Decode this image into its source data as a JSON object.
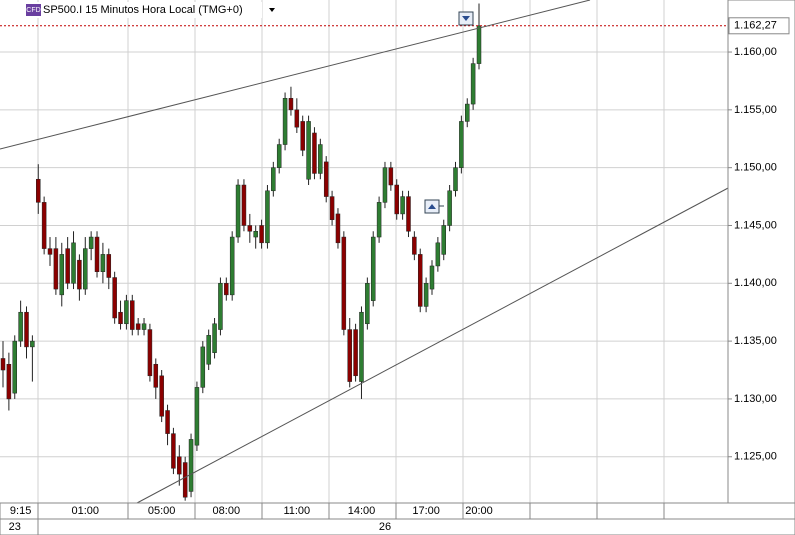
{
  "chart_data": {
    "type": "candlestick",
    "badge": "CFD",
    "title": "SP500.I 15 Minutos Hora Local (TMG+0)",
    "categories": [
      null,
      null,
      null,
      "9:15",
      null,
      null,
      null,
      null,
      null,
      null,
      null,
      null,
      null,
      null,
      "01:00",
      null,
      null,
      null,
      null,
      null,
      null,
      null,
      null,
      null,
      null,
      null,
      null,
      "05:00",
      null,
      null,
      null,
      null,
      null,
      null,
      null,
      null,
      null,
      null,
      "08:00",
      null,
      null,
      null,
      null,
      null,
      null,
      null,
      null,
      null,
      null,
      null,
      "11:00",
      null,
      null,
      null,
      null,
      null,
      null,
      null,
      null,
      null,
      null,
      "14:00",
      null,
      null,
      null,
      null,
      null,
      null,
      null,
      null,
      null,
      null,
      "17:00",
      null,
      null,
      null,
      null,
      null,
      null,
      null,
      null,
      "20:00"
    ],
    "dates": [
      null,
      null,
      "23",
      null,
      null,
      null,
      null,
      null,
      null,
      null,
      null,
      null,
      null,
      null,
      null,
      null,
      null,
      null,
      null,
      null,
      null,
      null,
      null,
      null,
      null,
      null,
      null,
      null,
      null,
      null,
      null,
      null,
      null,
      null,
      null,
      null,
      null,
      null,
      null,
      null,
      null,
      null,
      null,
      null,
      null,
      null,
      null,
      null,
      null,
      null,
      null,
      null,
      null,
      null,
      null,
      null,
      null,
      null,
      null,
      null,
      null,
      null,
      null,
      null,
      null,
      "26",
      null,
      null,
      null,
      null,
      null,
      null,
      null,
      null,
      null,
      null,
      null,
      null,
      null,
      null,
      null,
      null
    ],
    "open": [
      1133.5,
      1133,
      1130.5,
      1135,
      1137.5,
      1134.5,
      1149,
      1147,
      1143,
      1143,
      1139,
      1143,
      1140,
      1142,
      1139.5,
      1143,
      1144,
      1141,
      1142.5,
      1140.5,
      1137.5,
      1136.5,
      1138.5,
      1136.5,
      1136,
      1136,
      1133,
      1132,
      1129,
      1127,
      1125,
      1124.5,
      1122,
      1126,
      1131,
      1133,
      1134,
      1136,
      1140,
      1139,
      1144,
      1148.5,
      1145,
      1144,
      1145,
      1143.5,
      1148,
      1150,
      1152,
      1156,
      1155,
      1154,
      1149,
      1153,
      1149.5,
      1150.5,
      1147.5,
      1146,
      1144,
      1136,
      1136,
      1131.5,
      1136.5,
      1138.5,
      1144,
      1147,
      1150,
      1148.5,
      1146,
      1147.5,
      1144,
      1142.5,
      1138,
      1139.5,
      1141.5,
      1142.5,
      1145,
      1148,
      1150,
      1154,
      1155.5,
      1159
    ],
    "high": [
      1135,
      1134,
      1135.5,
      1138.5,
      1138,
      1135.5,
      1150.3,
      1147.5,
      1144,
      1144,
      1143.5,
      1144,
      1144.5,
      1142.5,
      1144,
      1144.5,
      1144.5,
      1143.5,
      1143,
      1141,
      1138.5,
      1139,
      1139,
      1137,
      1137,
      1136.5,
      1133.5,
      1132.5,
      1129.5,
      1127.5,
      1126,
      1125,
      1127,
      1131.5,
      1135,
      1136,
      1137,
      1140.5,
      1140.5,
      1144.5,
      1149,
      1149,
      1146,
      1145,
      1145.5,
      1148.5,
      1150.5,
      1152.5,
      1156.5,
      1157,
      1156,
      1154.5,
      1154.5,
      1153.5,
      1152.5,
      1151,
      1148,
      1146.5,
      1144.5,
      1137,
      1136.5,
      1138,
      1140.5,
      1144.5,
      1147.5,
      1150.5,
      1150.5,
      1149,
      1148,
      1148,
      1144.5,
      1143,
      1140.5,
      1142,
      1144,
      1145.5,
      1148.5,
      1150.5,
      1154.5,
      1156,
      1159.5,
      1164.2
    ],
    "low": [
      1131,
      1129,
      1130,
      1134.5,
      1133.5,
      1131.5,
      1146,
      1142.5,
      1141.5,
      1139,
      1138,
      1139.5,
      1139.5,
      1138.5,
      1139,
      1142,
      1140.5,
      1140,
      1139.5,
      1136.5,
      1136,
      1136,
      1135.5,
      1135.5,
      1135.5,
      1131.5,
      1130,
      1128,
      1126,
      1123.5,
      1122.5,
      1121.2,
      1121.5,
      1125.5,
      1130.5,
      1132.5,
      1133.5,
      1135.5,
      1138.5,
      1138.5,
      1143.5,
      1144.5,
      1143.5,
      1143,
      1143,
      1143,
      1147.5,
      1149.5,
      1151.5,
      1154.5,
      1153,
      1151,
      1148.5,
      1149,
      1149,
      1147,
      1145,
      1143,
      1135.5,
      1131,
      1131.5,
      1130,
      1136,
      1138,
      1143.5,
      1146.5,
      1148,
      1145.5,
      1145.5,
      1144,
      1142,
      1137.5,
      1137.5,
      1139,
      1141,
      1142,
      1144.5,
      1147.5,
      1149.5,
      1153.5,
      1155,
      1158.5
    ],
    "close": [
      1132.5,
      1130,
      1135,
      1137.5,
      1134.5,
      1135,
      1147,
      1143,
      1142.5,
      1139.5,
      1142.5,
      1140,
      1143.5,
      1139.5,
      1143,
      1144,
      1141,
      1142.5,
      1140.5,
      1137,
      1136.5,
      1138.5,
      1136,
      1136,
      1136.5,
      1132,
      1131,
      1128.5,
      1127,
      1124,
      1123.5,
      1121.5,
      1126.5,
      1131,
      1134.5,
      1135.5,
      1136.5,
      1140,
      1139,
      1144,
      1148.5,
      1145,
      1144.5,
      1144.5,
      1143.5,
      1148,
      1150,
      1152,
      1156,
      1155,
      1153.5,
      1151.5,
      1154,
      1149.5,
      1152,
      1147.5,
      1145.5,
      1143.5,
      1136,
      1131.5,
      1132,
      1137.5,
      1140,
      1144,
      1147,
      1150,
      1148.5,
      1146,
      1147.5,
      1144.5,
      1142.5,
      1138,
      1140,
      1141.5,
      1143.5,
      1145,
      1148,
      1150,
      1154,
      1155.5,
      1159,
      1162.27
    ],
    "up_color": "#2e7d32",
    "down_color": "#8b0000",
    "last_price": {
      "value": 1162.27,
      "label": "1.162,27"
    },
    "ylim": [
      1121.0,
      1164.5
    ],
    "yticks": [
      {
        "value": 1125,
        "label": "1.125,00"
      },
      {
        "value": 1130,
        "label": "1.130,00"
      },
      {
        "value": 1135,
        "label": "1.135,00"
      },
      {
        "value": 1140,
        "label": "1.140,00"
      },
      {
        "value": 1145,
        "label": "1.145,00"
      },
      {
        "value": 1150,
        "label": "1.150,00"
      },
      {
        "value": 1155,
        "label": "1.155,00"
      },
      {
        "value": 1160,
        "label": "1.160,00"
      }
    ],
    "grid": true
  }
}
